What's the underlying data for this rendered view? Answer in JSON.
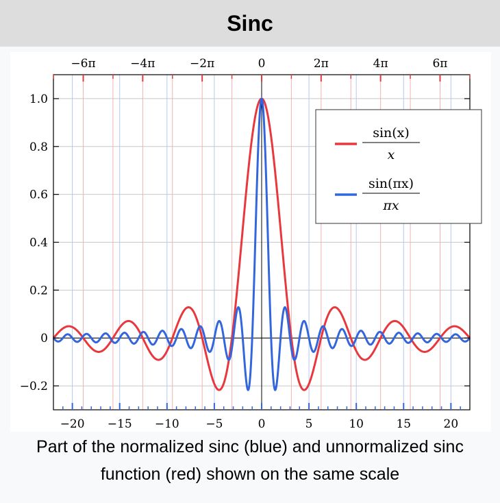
{
  "title": "Sinc",
  "caption_line1": "Part of the normalized sinc (blue) and unnormalized sinc",
  "caption_line2": "function (red) shown on the same scale",
  "chart_data": {
    "type": "line",
    "xlim": [
      -22,
      22
    ],
    "ylim": [
      -0.3,
      1.1
    ],
    "grid": true,
    "legend_position": "top-right",
    "series": [
      {
        "name": "sin(x) / x",
        "legend_num": "sin(x)",
        "legend_den": "x",
        "function": "sin(x)/x",
        "color": "#e8383d"
      },
      {
        "name": "sin(πx) / πx",
        "legend_num": "sin(πx)",
        "legend_den": "πx",
        "function": "sin(pi*x)/(pi*x)",
        "color": "#3366dd"
      }
    ],
    "bottom_ticks": [
      {
        "value": -20,
        "label": "−20"
      },
      {
        "value": -15,
        "label": "−15"
      },
      {
        "value": -10,
        "label": "−10"
      },
      {
        "value": -5,
        "label": "−5"
      },
      {
        "value": 0,
        "label": "0"
      },
      {
        "value": 5,
        "label": "5"
      },
      {
        "value": 10,
        "label": "10"
      },
      {
        "value": 15,
        "label": "15"
      },
      {
        "value": 20,
        "label": "20"
      }
    ],
    "top_ticks": [
      {
        "value": -18.8496,
        "label": "−6π"
      },
      {
        "value": -12.5664,
        "label": "−4π"
      },
      {
        "value": -6.2832,
        "label": "−2π"
      },
      {
        "value": 0,
        "label": "0"
      },
      {
        "value": 6.2832,
        "label": "2π"
      },
      {
        "value": 12.5664,
        "label": "4π"
      },
      {
        "value": 18.8496,
        "label": "6π"
      }
    ],
    "y_ticks": [
      {
        "value": 1.0,
        "label": "1.0"
      },
      {
        "value": 0.8,
        "label": "0.8"
      },
      {
        "value": 0.6,
        "label": "0.6"
      },
      {
        "value": 0.4,
        "label": "0.4"
      },
      {
        "value": 0.2,
        "label": "0.2"
      },
      {
        "value": 0,
        "label": "0"
      },
      {
        "value": -0.2,
        "label": "−0.2"
      }
    ]
  }
}
